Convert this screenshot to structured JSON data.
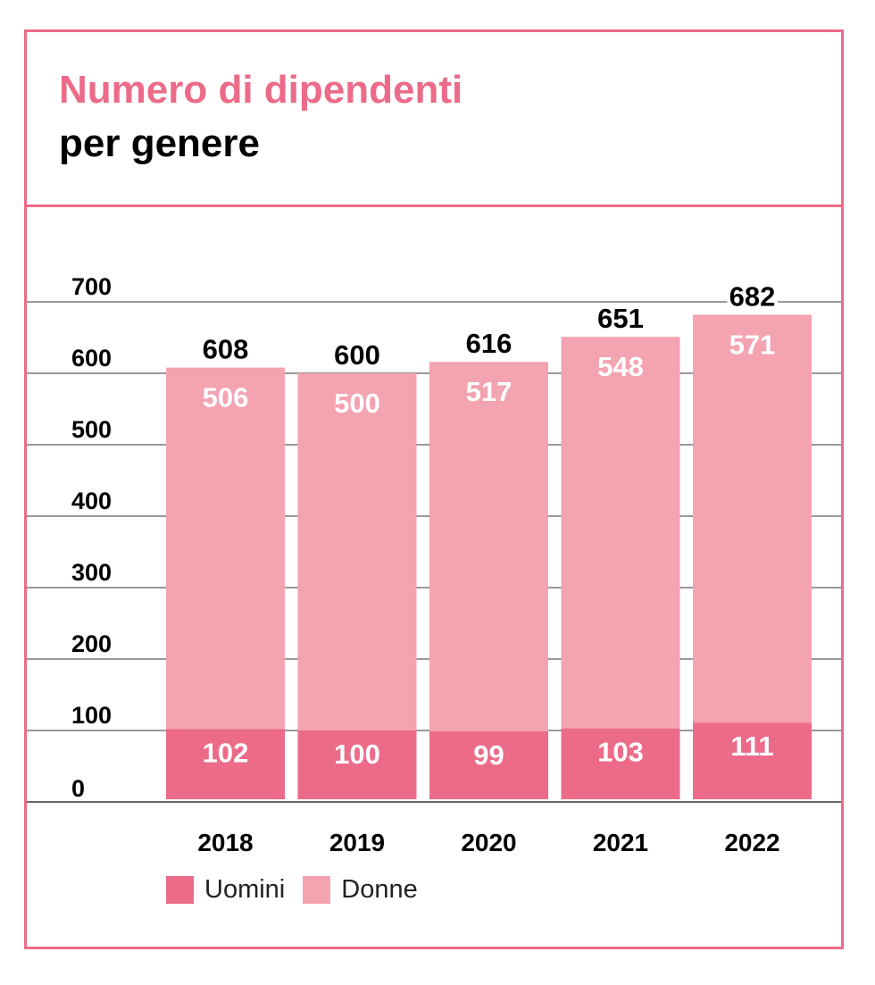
{
  "colors": {
    "frame": "#ec6b89",
    "uomini": "#ec6b89",
    "donne": "#f4a3b1",
    "grid": "#333333"
  },
  "chart_data": {
    "type": "bar",
    "stacked": true,
    "title": "Numero di dipendenti",
    "subtitle": "per genere",
    "categories": [
      "2018",
      "2019",
      "2020",
      "2021",
      "2022"
    ],
    "series": [
      {
        "name": "Uomini",
        "values": [
          102,
          100,
          99,
          103,
          111
        ]
      },
      {
        "name": "Donne",
        "values": [
          506,
          500,
          517,
          548,
          571
        ]
      }
    ],
    "totals": [
      608,
      600,
      616,
      651,
      682
    ],
    "yticks": [
      0,
      100,
      200,
      300,
      400,
      500,
      600,
      700
    ],
    "ylim": [
      0,
      700
    ],
    "grid": true,
    "legend": "bottom-left"
  }
}
